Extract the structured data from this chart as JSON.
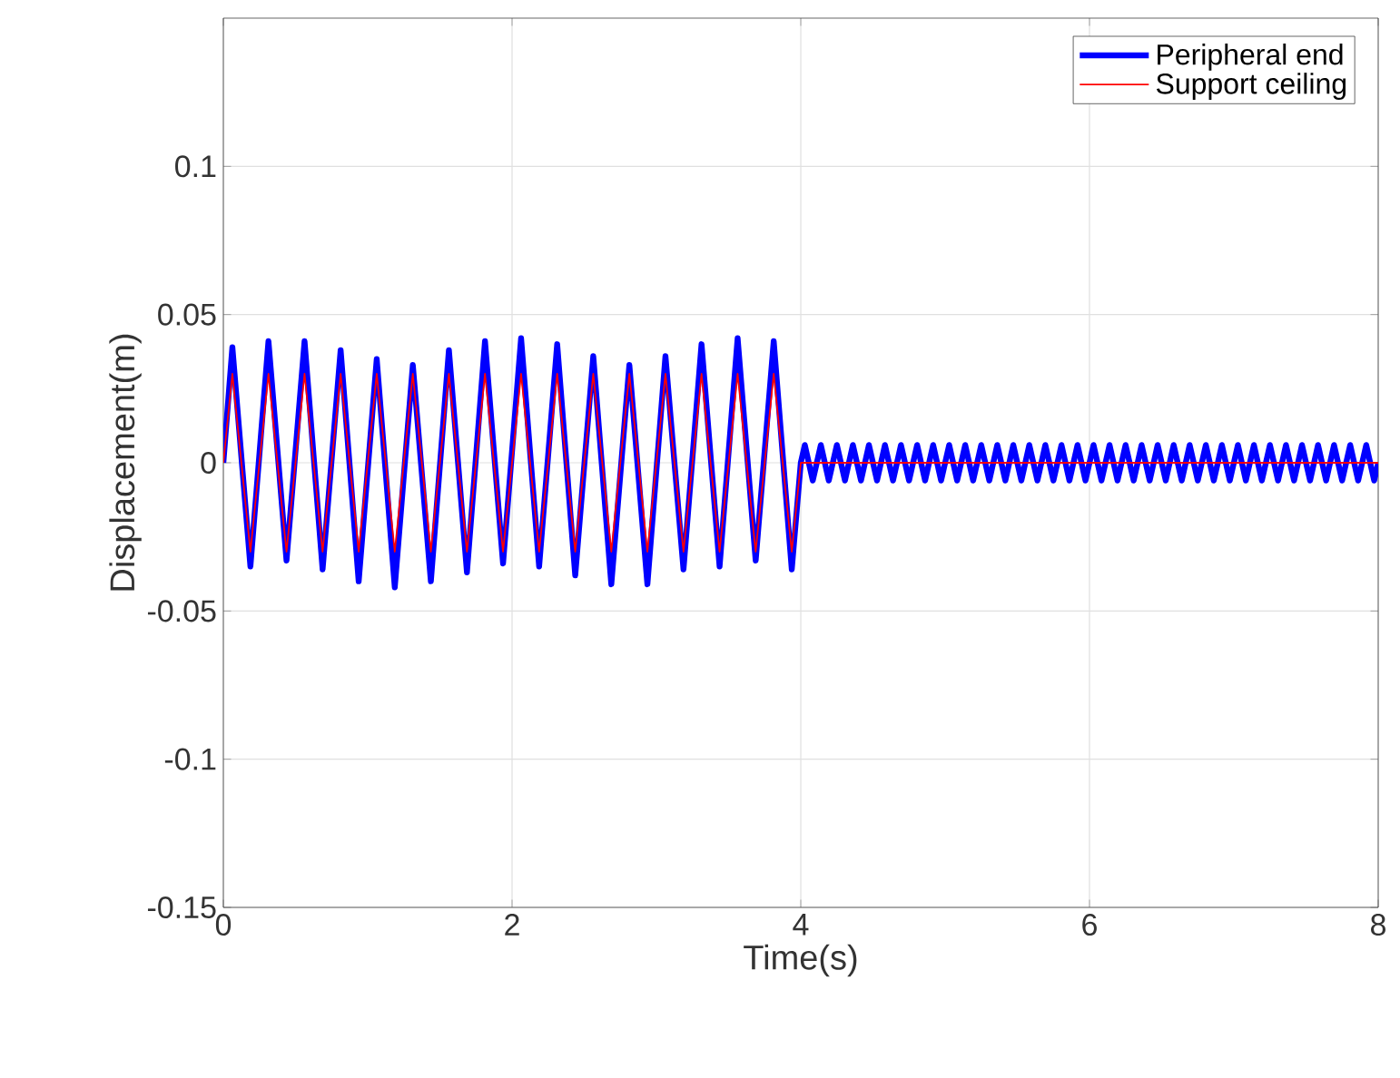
{
  "chart_data": {
    "type": "line",
    "xlabel": "Time(s)",
    "ylabel": "Displacement(m)",
    "xlim": [
      0,
      8
    ],
    "ylim": [
      -0.15,
      0.15
    ],
    "xticks": [
      0,
      2,
      4,
      6,
      8
    ],
    "yticks": [
      -0.15,
      -0.1,
      -0.05,
      0,
      0.05,
      0.1
    ],
    "grid": true,
    "legend": "top right",
    "line_style": "solid",
    "marker": "none",
    "series": [
      {
        "name": "Peripheral end",
        "color": "#0000ff",
        "x": [
          0,
          0.0625,
          0.1875,
          0.3125,
          0.4375,
          0.5625,
          0.6875,
          0.8125,
          0.9375,
          1.0625,
          1.1875,
          1.3125,
          1.4375,
          1.5625,
          1.6875,
          1.8125,
          1.9375,
          2.0625,
          2.1875,
          2.3125,
          2.4375,
          2.5625,
          2.6875,
          2.8125,
          2.9375,
          3.0625,
          3.1875,
          3.3125,
          3.4375,
          3.5625,
          3.6875,
          3.8125,
          3.9375,
          4.0,
          4.028,
          4.083,
          4.139,
          4.194,
          4.25,
          4.306,
          4.361,
          4.417,
          4.472,
          4.528,
          4.583,
          4.639,
          4.694,
          4.75,
          4.806,
          4.861,
          4.917,
          4.972,
          5.028,
          5.083,
          5.139,
          5.194,
          5.25,
          5.306,
          5.361,
          5.417,
          5.472,
          5.528,
          5.583,
          5.639,
          5.694,
          5.75,
          5.806,
          5.861,
          5.917,
          5.972,
          6.028,
          6.083,
          6.139,
          6.194,
          6.25,
          6.306,
          6.361,
          6.417,
          6.472,
          6.528,
          6.583,
          6.639,
          6.694,
          6.75,
          6.806,
          6.861,
          6.917,
          6.972,
          7.028,
          7.083,
          7.139,
          7.194,
          7.25,
          7.306,
          7.361,
          7.417,
          7.472,
          7.528,
          7.583,
          7.639,
          7.694,
          7.75,
          7.806,
          7.861,
          7.917,
          7.972,
          8.0
        ],
        "values": [
          0,
          0.039,
          -0.035,
          0.041,
          -0.033,
          0.041,
          -0.036,
          0.038,
          -0.04,
          0.035,
          -0.042,
          0.033,
          -0.04,
          0.038,
          -0.037,
          0.041,
          -0.034,
          0.042,
          -0.035,
          0.04,
          -0.038,
          0.036,
          -0.041,
          0.033,
          -0.041,
          0.036,
          -0.036,
          0.04,
          -0.035,
          0.042,
          -0.033,
          0.041,
          -0.036,
          0,
          0.006,
          -0.006,
          0.006,
          -0.006,
          0.006,
          -0.006,
          0.006,
          -0.006,
          0.006,
          -0.006,
          0.006,
          -0.006,
          0.006,
          -0.006,
          0.006,
          -0.006,
          0.006,
          -0.006,
          0.006,
          -0.006,
          0.006,
          -0.006,
          0.006,
          -0.006,
          0.006,
          -0.006,
          0.006,
          -0.006,
          0.006,
          -0.006,
          0.006,
          -0.006,
          0.006,
          -0.006,
          0.006,
          -0.006,
          0.006,
          -0.006,
          0.006,
          -0.006,
          0.006,
          -0.006,
          0.006,
          -0.006,
          0.006,
          -0.006,
          0.006,
          -0.006,
          0.006,
          -0.006,
          0.006,
          -0.006,
          0.006,
          -0.006,
          0.006,
          -0.006,
          0.006,
          -0.006,
          0.006,
          -0.006,
          0.006,
          -0.006,
          0.006,
          -0.006,
          0.006,
          -0.006,
          0.006,
          -0.006,
          0.006,
          -0.006,
          0.006,
          -0.006,
          0
        ]
      },
      {
        "name": "Support ceiling",
        "color": "#ff0000",
        "x": [
          0,
          0.0625,
          0.1875,
          0.3125,
          0.4375,
          0.5625,
          0.6875,
          0.8125,
          0.9375,
          1.0625,
          1.1875,
          1.3125,
          1.4375,
          1.5625,
          1.6875,
          1.8125,
          1.9375,
          2.0625,
          2.1875,
          2.3125,
          2.4375,
          2.5625,
          2.6875,
          2.8125,
          2.9375,
          3.0625,
          3.1875,
          3.3125,
          3.4375,
          3.5625,
          3.6875,
          3.8125,
          3.9375,
          4.0,
          8.0
        ],
        "values": [
          0,
          0.03,
          -0.03,
          0.03,
          -0.03,
          0.03,
          -0.03,
          0.03,
          -0.03,
          0.03,
          -0.03,
          0.03,
          -0.03,
          0.03,
          -0.03,
          0.03,
          -0.03,
          0.03,
          -0.03,
          0.03,
          -0.03,
          0.03,
          -0.03,
          0.03,
          -0.03,
          0.03,
          -0.03,
          0.03,
          -0.03,
          0.03,
          -0.03,
          0.03,
          -0.03,
          0,
          0
        ]
      }
    ]
  }
}
